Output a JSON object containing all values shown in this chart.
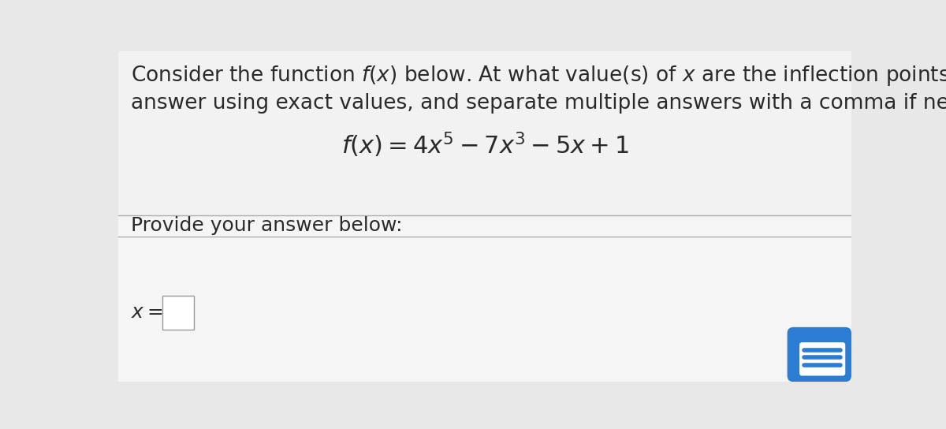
{
  "bg_color": "#e8e8e8",
  "top_section_bg": "#d8d8d8",
  "question_area_bg": "#f5f5f5",
  "answer_area_bg": "#f0f0f0",
  "question_text_line1": "Consider the function $f(x)$ below. At what value(s) of $x$ are the inflection points? Enter",
  "question_text_line2": "answer using exact values, and separate multiple answers with a comma if necessary.",
  "formula": "$f(x) = 4x^5 - 7x^3 - 5x + 1$",
  "provide_text": "Provide your answer below:",
  "answer_label": "$x =$",
  "text_color": "#2a2a2a",
  "divider_color": "#b0b0b0",
  "input_box_bg": "#ffffff",
  "input_box_border": "#999999",
  "blue_btn_color": "#2b7cd3",
  "white_color": "#ffffff",
  "main_font_size": 19,
  "formula_font_size": 22,
  "provide_font_size": 18,
  "answer_font_size": 18
}
